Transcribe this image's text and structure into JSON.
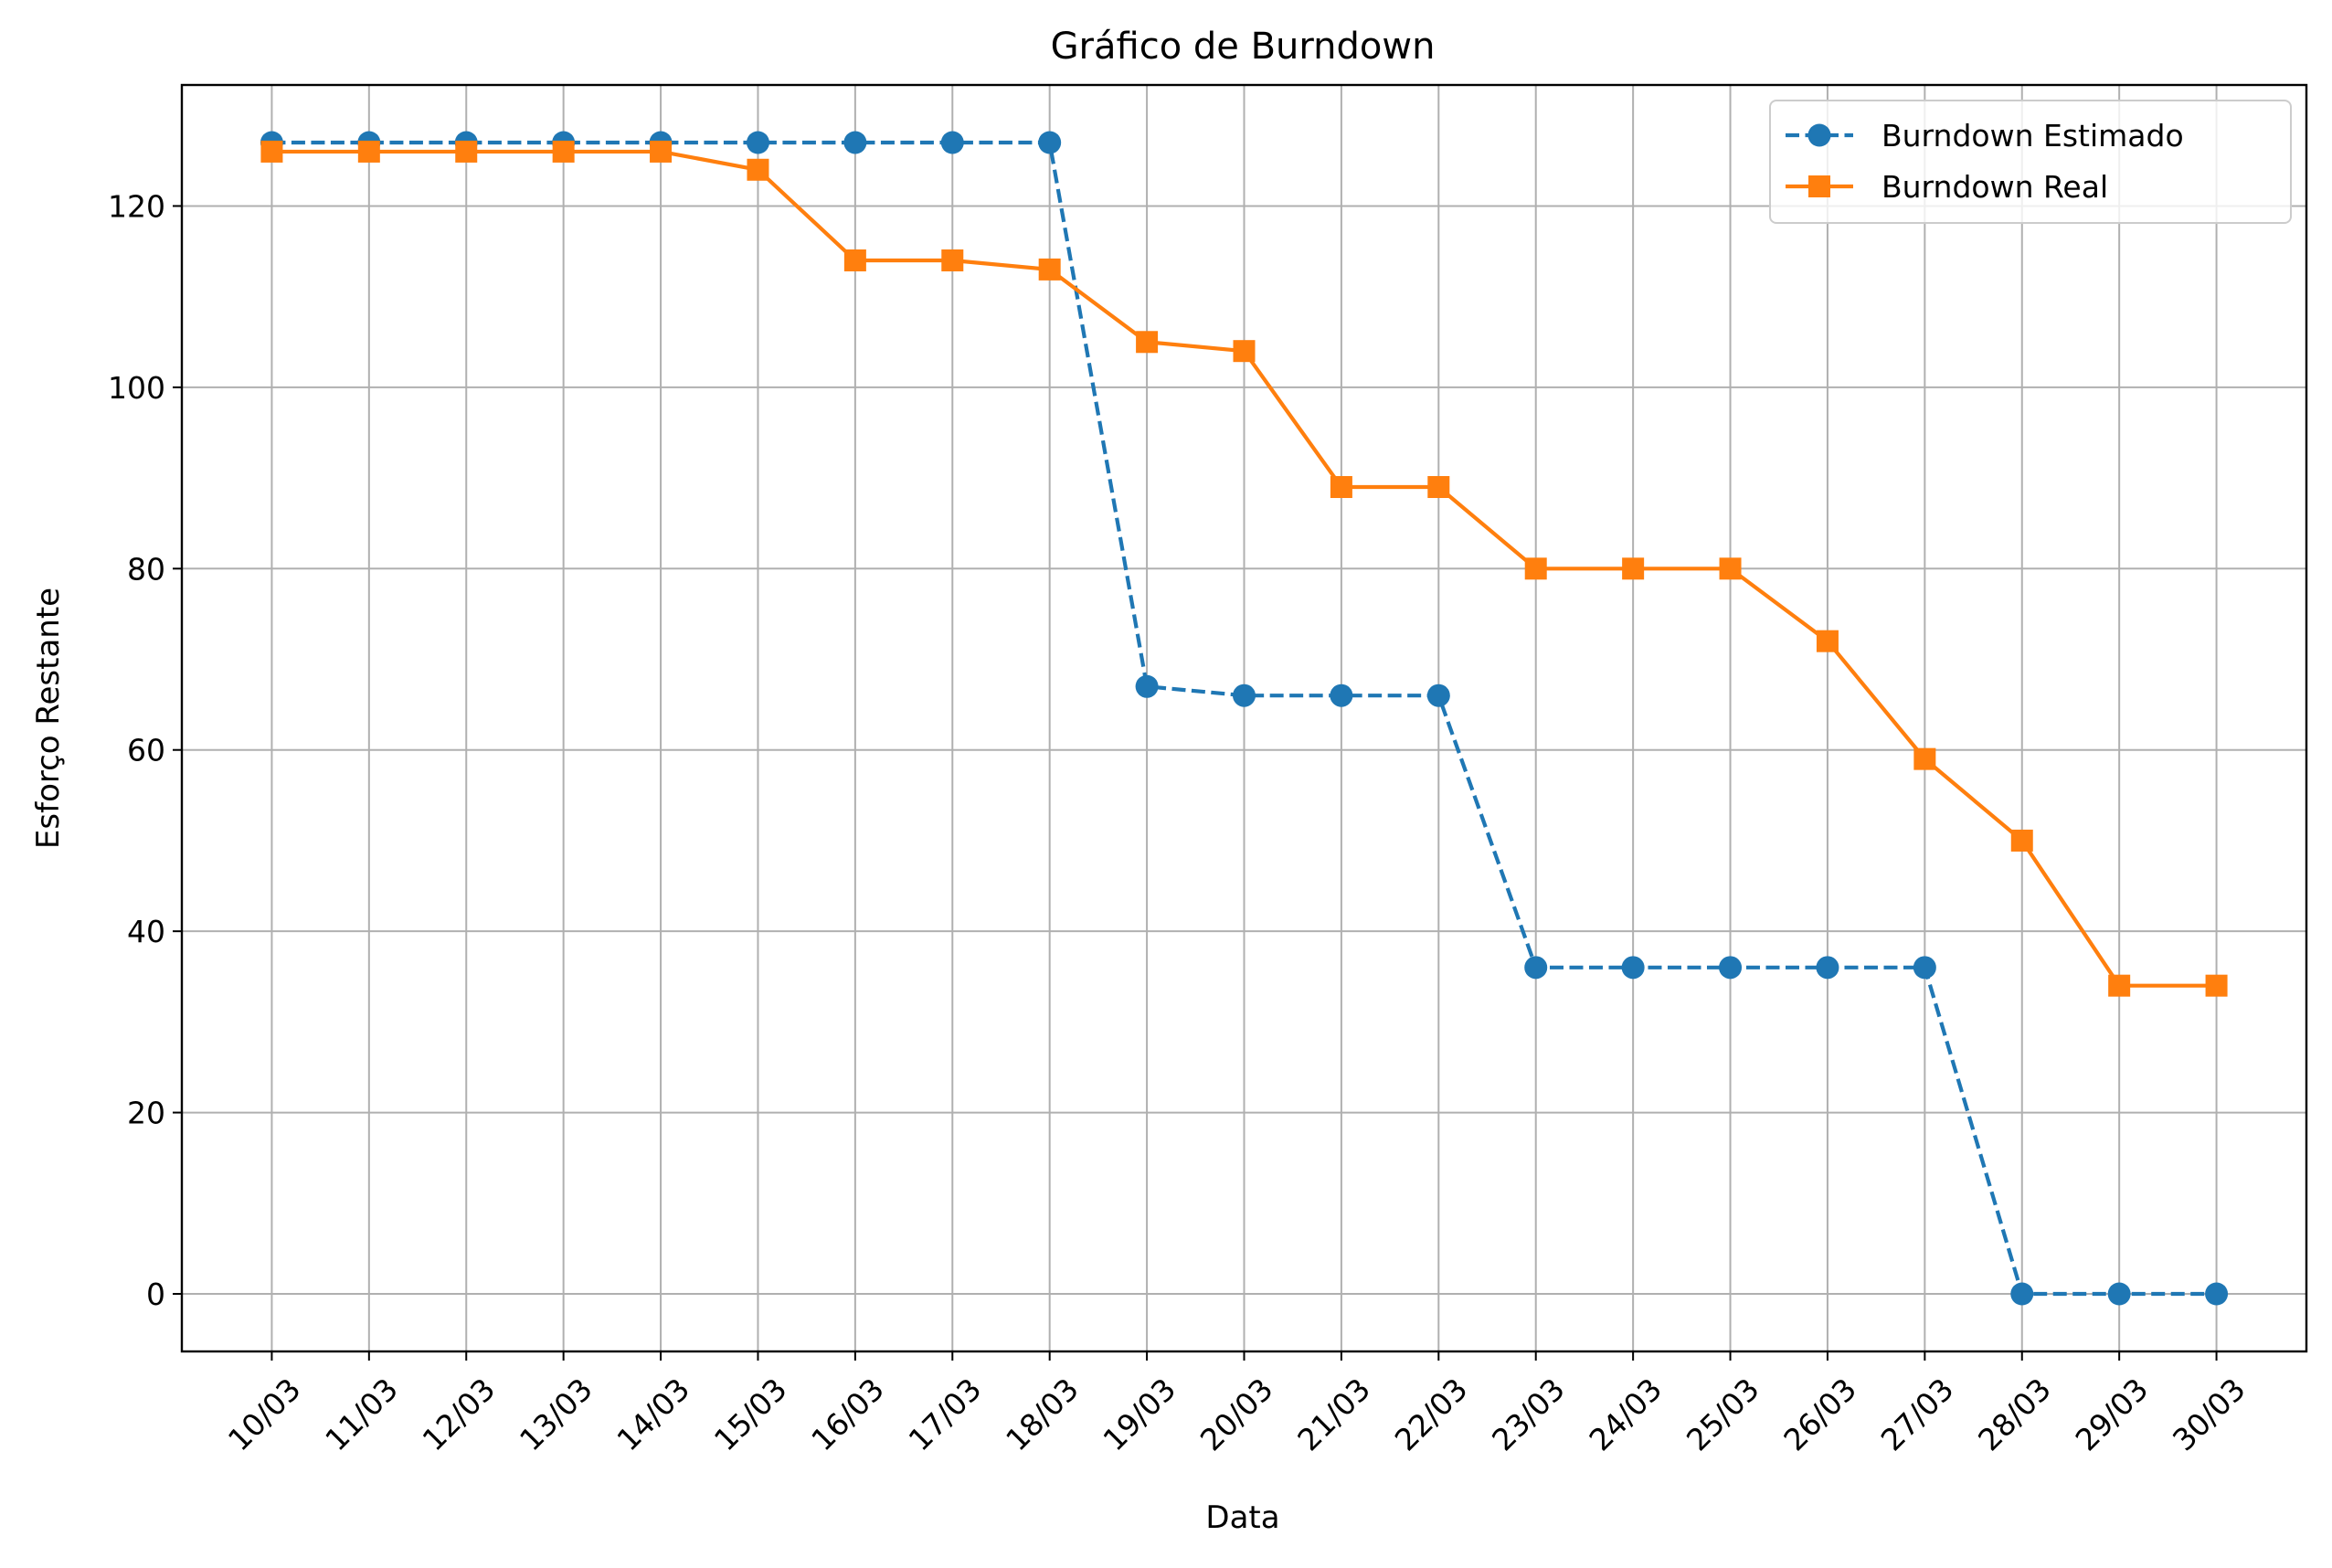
{
  "chart_data": {
    "type": "line",
    "title": "Gráfico de Burndown",
    "xlabel": "Data",
    "ylabel": "Esforço Restante",
    "categories": [
      "10/03",
      "11/03",
      "12/03",
      "13/03",
      "14/03",
      "15/03",
      "16/03",
      "17/03",
      "18/03",
      "19/03",
      "20/03",
      "21/03",
      "22/03",
      "23/03",
      "24/03",
      "25/03",
      "26/03",
      "27/03",
      "28/03",
      "29/03",
      "30/03"
    ],
    "yticks": [
      0,
      20,
      40,
      60,
      80,
      100,
      120
    ],
    "ylim": [
      -6.35,
      133.35
    ],
    "grid": true,
    "legend_position": "top-right",
    "series": [
      {
        "name": "Burndown Estimado",
        "color": "#1f77b4",
        "line_style": "dashed",
        "marker": "circle",
        "values": [
          127,
          127,
          127,
          127,
          127,
          127,
          127,
          127,
          127,
          67,
          66,
          66,
          66,
          36,
          36,
          36,
          36,
          36,
          0,
          0,
          0
        ]
      },
      {
        "name": "Burndown Real",
        "color": "#ff7f0e",
        "line_style": "solid",
        "marker": "square",
        "values": [
          126,
          126,
          126,
          126,
          126,
          124,
          114,
          114,
          113,
          105,
          104,
          89,
          89,
          80,
          80,
          80,
          72,
          59,
          50,
          34,
          34
        ]
      }
    ]
  }
}
